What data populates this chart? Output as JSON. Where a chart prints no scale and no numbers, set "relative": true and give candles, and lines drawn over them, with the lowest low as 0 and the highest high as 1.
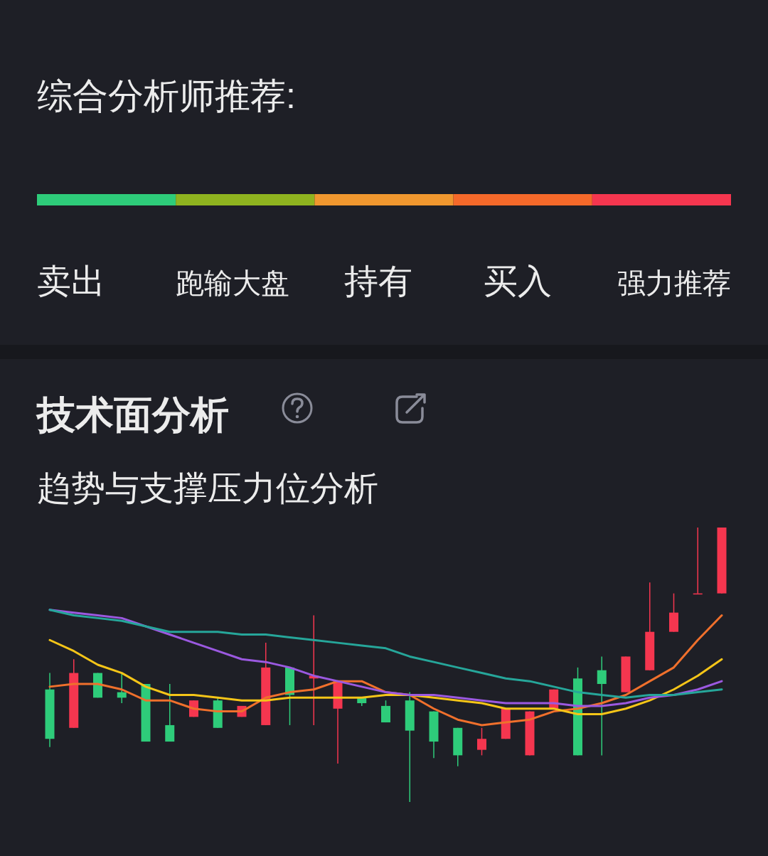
{
  "chart_data": [
    {
      "type": "other",
      "title": "综合分析师推荐:",
      "categories": [
        "卖出",
        "跑输大盘",
        "持有",
        "买入",
        "强力推荐"
      ],
      "colors": [
        "#2ecc7a",
        "#8fb31f",
        "#f0972f",
        "#f5692a",
        "#f5364f"
      ]
    },
    {
      "type": "candlestick",
      "title": "技术面分析",
      "subtitle": "趋势与支撑压力位分析",
      "relative": true,
      "marker": "none",
      "line_style": "solid",
      "categories": [
        null,
        null,
        null,
        null,
        null,
        null,
        null,
        null,
        null,
        null,
        null,
        null,
        null,
        null,
        null,
        null,
        null,
        null,
        null,
        null,
        null,
        null,
        null,
        null,
        null,
        null,
        null,
        null,
        null
      ],
      "ohlc": [
        [
          0.41,
          0.47,
          0.2,
          0.23
        ],
        [
          0.27,
          0.52,
          0.27,
          0.47
        ],
        [
          0.47,
          0.47,
          0.38,
          0.38
        ],
        [
          0.4,
          0.47,
          0.36,
          0.38
        ],
        [
          0.43,
          0.43,
          0.22,
          0.22
        ],
        [
          0.28,
          0.43,
          0.22,
          0.22
        ],
        [
          0.31,
          0.37,
          0.31,
          0.37
        ],
        [
          0.37,
          0.38,
          0.27,
          0.27
        ],
        [
          0.31,
          0.35,
          0.31,
          0.35
        ],
        [
          0.28,
          0.58,
          0.28,
          0.49
        ],
        [
          0.49,
          0.49,
          0.28,
          0.39
        ],
        [
          0.45,
          0.68,
          0.28,
          0.46
        ],
        [
          0.34,
          0.44,
          0.14,
          0.44
        ],
        [
          0.38,
          0.38,
          0.35,
          0.36
        ],
        [
          0.35,
          0.37,
          0.29,
          0.29
        ],
        [
          0.37,
          0.4,
          0,
          0.26
        ],
        [
          0.33,
          0.33,
          0.16,
          0.22
        ],
        [
          0.27,
          0.27,
          0.13,
          0.17
        ],
        [
          0.19,
          0.27,
          0.17,
          0.23
        ],
        [
          0.23,
          0.34,
          0.23,
          0.34
        ],
        [
          0.17,
          0.33,
          0.17,
          0.33
        ],
        [
          0.34,
          0.41,
          0.34,
          0.41
        ],
        [
          0.45,
          0.49,
          0.17,
          0.17
        ],
        [
          0.48,
          0.53,
          0.17,
          0.43
        ],
        [
          0.4,
          0.53,
          0.4,
          0.53
        ],
        [
          0.48,
          0.8,
          0.48,
          0.62
        ],
        [
          0.62,
          0.76,
          0.62,
          0.69
        ],
        [
          0.76,
          1,
          0.76,
          0.76
        ],
        [
          0.76,
          1,
          0.76,
          1
        ]
      ],
      "colors": [
        "#2ecc7a",
        "#f5364f",
        "#2ecc7a",
        "#2ecc7a",
        "#2ecc7a",
        "#2ecc7a",
        "#f5364f",
        "#2ecc7a",
        "#f5364f",
        "#f5364f",
        "#2ecc7a",
        "#f5364f",
        "#f5364f",
        "#2ecc7a",
        "#2ecc7a",
        "#2ecc7a",
        "#2ecc7a",
        "#2ecc7a",
        "#f5364f",
        "#f5364f",
        "#f5364f",
        "#f5364f",
        "#2ecc7a",
        "#2ecc7a",
        "#f5364f",
        "#f5364f",
        "#f5364f",
        "#f5364f",
        "#f5364f"
      ],
      "series": [
        {
          "type": "line",
          "color": "#f0702c",
          "values": [
            0.42,
            0.43,
            0.43,
            0.41,
            0.37,
            0.37,
            0.34,
            0.33,
            0.33,
            0.38,
            0.4,
            0.41,
            0.44,
            0.44,
            0.4,
            0.39,
            0.34,
            0.3,
            0.28,
            0.29,
            0.3,
            0.33,
            0.34,
            0.36,
            0.39,
            0.44,
            0.49,
            0.59,
            0.68
          ]
        },
        {
          "type": "line",
          "color": "#f5c518",
          "values": [
            0.59,
            0.55,
            0.5,
            0.47,
            0.42,
            0.39,
            0.39,
            0.38,
            0.37,
            0.37,
            0.38,
            0.38,
            0.38,
            0.38,
            0.39,
            0.39,
            0.38,
            0.37,
            0.36,
            0.34,
            0.34,
            0.34,
            0.32,
            0.32,
            0.34,
            0.37,
            0.41,
            0.46,
            0.52
          ]
        },
        {
          "type": "line",
          "color": "#9b59e0",
          "values": [
            0.7,
            0.69,
            0.68,
            0.67,
            0.64,
            0.61,
            0.58,
            0.55,
            0.52,
            0.51,
            0.49,
            0.46,
            0.44,
            0.42,
            0.4,
            0.39,
            0.39,
            0.38,
            0.37,
            0.36,
            0.36,
            0.36,
            0.35,
            0.35,
            0.36,
            0.38,
            0.39,
            0.41,
            0.44
          ]
        },
        {
          "type": "line",
          "color": "#26a69a",
          "values": [
            0.7,
            0.68,
            0.67,
            0.66,
            0.64,
            0.62,
            0.62,
            0.62,
            0.61,
            0.61,
            0.6,
            0.59,
            0.58,
            0.57,
            0.56,
            0.53,
            0.51,
            0.49,
            0.47,
            0.45,
            0.44,
            0.42,
            0.4,
            0.39,
            0.38,
            0.39,
            0.39,
            0.4,
            0.41
          ]
        }
      ]
    }
  ]
}
